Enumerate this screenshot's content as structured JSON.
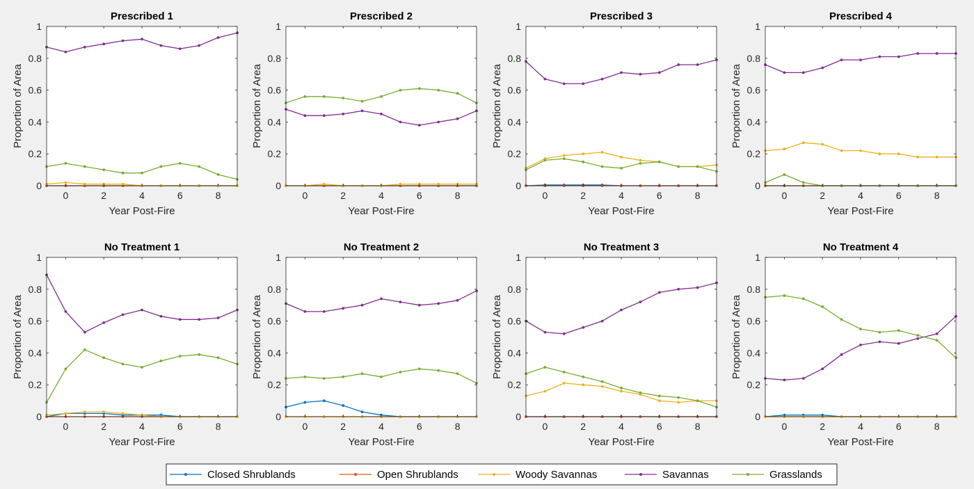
{
  "figure": {
    "background": "#f0f0f0",
    "series_colors": {
      "Closed Shrublands": "#0072bd",
      "Open Shrublands": "#d95319",
      "Woody Savannas": "#edb120",
      "Savannas": "#7e2f8e",
      "Grasslands": "#77ac30"
    }
  },
  "legend": {
    "items": [
      "Closed Shrublands",
      "Open Shrublands",
      "Woody Savannas",
      "Savannas",
      "Grasslands"
    ],
    "placement": "bottom-center"
  },
  "chart_data": [
    {
      "type": "line",
      "title": "Prescribed 1",
      "xlabel": "Year Post-Fire",
      "ylabel": "Proportion of Area",
      "x": [
        -1,
        0,
        1,
        2,
        3,
        4,
        5,
        6,
        7,
        8,
        9
      ],
      "xlim": [
        -1,
        9
      ],
      "ylim": [
        0,
        1
      ],
      "xticks": [
        0,
        2,
        4,
        6,
        8
      ],
      "yticks": [
        0,
        0.2,
        0.4,
        0.6,
        0.8,
        1
      ],
      "grid": false,
      "series": [
        {
          "name": "Closed Shrublands",
          "values": [
            0,
            0,
            0,
            0,
            0,
            0,
            0,
            0,
            0,
            0,
            0
          ]
        },
        {
          "name": "Open Shrublands",
          "values": [
            0,
            0,
            0,
            0,
            0,
            0,
            0,
            0,
            0,
            0,
            0
          ]
        },
        {
          "name": "Woody Savannas",
          "values": [
            0.01,
            0.02,
            0.01,
            0.01,
            0.01,
            0,
            0,
            0,
            0,
            0,
            0
          ]
        },
        {
          "name": "Savannas",
          "values": [
            0.87,
            0.84,
            0.87,
            0.89,
            0.91,
            0.92,
            0.88,
            0.86,
            0.88,
            0.93,
            0.96
          ]
        },
        {
          "name": "Grasslands",
          "values": [
            0.12,
            0.14,
            0.12,
            0.1,
            0.08,
            0.08,
            0.12,
            0.14,
            0.12,
            0.07,
            0.04
          ]
        }
      ]
    },
    {
      "type": "line",
      "title": "Prescribed 2",
      "xlabel": "Year Post-Fire",
      "ylabel": "Proportion of Area",
      "x": [
        -1,
        0,
        1,
        2,
        3,
        4,
        5,
        6,
        7,
        8,
        9
      ],
      "xlim": [
        -1,
        9
      ],
      "ylim": [
        0,
        1
      ],
      "xticks": [
        0,
        2,
        4,
        6,
        8
      ],
      "yticks": [
        0,
        0.2,
        0.4,
        0.6,
        0.8,
        1
      ],
      "grid": false,
      "series": [
        {
          "name": "Closed Shrublands",
          "values": [
            0,
            0,
            0,
            0,
            0,
            0,
            0,
            0,
            0,
            0,
            0
          ]
        },
        {
          "name": "Open Shrublands",
          "values": [
            0,
            0,
            0,
            0,
            0,
            0,
            0,
            0,
            0,
            0,
            0
          ]
        },
        {
          "name": "Woody Savannas",
          "values": [
            0,
            0,
            0.01,
            0,
            0,
            0,
            0.01,
            0.01,
            0.01,
            0.01,
            0.01
          ]
        },
        {
          "name": "Savannas",
          "values": [
            0.48,
            0.44,
            0.44,
            0.45,
            0.47,
            0.45,
            0.4,
            0.38,
            0.4,
            0.42,
            0.47
          ]
        },
        {
          "name": "Grasslands",
          "values": [
            0.52,
            0.56,
            0.56,
            0.55,
            0.53,
            0.56,
            0.6,
            0.61,
            0.6,
            0.58,
            0.52
          ]
        }
      ]
    },
    {
      "type": "line",
      "title": "Prescribed 3",
      "xlabel": "Year Post-Fire",
      "ylabel": "Proportion of Area",
      "x": [
        -1,
        0,
        1,
        2,
        3,
        4,
        5,
        6,
        7,
        8,
        9
      ],
      "xlim": [
        -1,
        9
      ],
      "ylim": [
        0,
        1
      ],
      "xticks": [
        0,
        2,
        4,
        6,
        8
      ],
      "yticks": [
        0,
        0.2,
        0.4,
        0.6,
        0.8,
        1
      ],
      "grid": false,
      "series": [
        {
          "name": "Closed Shrublands",
          "values": [
            0,
            0.005,
            0.005,
            0.005,
            0.005,
            0,
            0,
            0,
            0,
            0,
            0
          ]
        },
        {
          "name": "Open Shrublands",
          "values": [
            0,
            0,
            0,
            0,
            0,
            0,
            0,
            0,
            0,
            0,
            0
          ]
        },
        {
          "name": "Woody Savannas",
          "values": [
            0.11,
            0.17,
            0.19,
            0.2,
            0.21,
            0.18,
            0.16,
            0.15,
            0.12,
            0.12,
            0.13
          ]
        },
        {
          "name": "Savannas",
          "values": [
            0.78,
            0.67,
            0.64,
            0.64,
            0.67,
            0.71,
            0.7,
            0.71,
            0.76,
            0.76,
            0.79
          ]
        },
        {
          "name": "Grasslands",
          "values": [
            0.1,
            0.16,
            0.17,
            0.15,
            0.12,
            0.11,
            0.14,
            0.15,
            0.12,
            0.12,
            0.09
          ]
        }
      ]
    },
    {
      "type": "line",
      "title": "Prescribed 4",
      "xlabel": "Year Post-Fire",
      "ylabel": "Proportion of Area",
      "x": [
        -1,
        0,
        1,
        2,
        3,
        4,
        5,
        6,
        7,
        8,
        9
      ],
      "xlim": [
        -1,
        9
      ],
      "ylim": [
        0,
        1
      ],
      "xticks": [
        0,
        2,
        4,
        6,
        8
      ],
      "yticks": [
        0,
        0.2,
        0.4,
        0.6,
        0.8,
        1
      ],
      "grid": false,
      "series": [
        {
          "name": "Closed Shrublands",
          "values": [
            0,
            0,
            0,
            0,
            0,
            0,
            0,
            0,
            0,
            0,
            0
          ]
        },
        {
          "name": "Open Shrublands",
          "values": [
            0,
            0,
            0,
            0,
            0,
            0,
            0,
            0,
            0,
            0,
            0
          ]
        },
        {
          "name": "Woody Savannas",
          "values": [
            0.22,
            0.23,
            0.27,
            0.26,
            0.22,
            0.22,
            0.2,
            0.2,
            0.18,
            0.18,
            0.18
          ]
        },
        {
          "name": "Savannas",
          "values": [
            0.76,
            0.71,
            0.71,
            0.74,
            0.79,
            0.79,
            0.81,
            0.81,
            0.83,
            0.83,
            0.83
          ]
        },
        {
          "name": "Grasslands",
          "values": [
            0.02,
            0.07,
            0.02,
            0,
            0,
            0,
            0,
            0,
            0,
            0,
            0
          ]
        }
      ]
    },
    {
      "type": "line",
      "title": "No Treatment 1",
      "xlabel": "Year Post-Fire",
      "ylabel": "Proportion of Area",
      "x": [
        -1,
        0,
        1,
        2,
        3,
        4,
        5,
        6,
        7,
        8,
        9
      ],
      "xlim": [
        -1,
        9
      ],
      "ylim": [
        0,
        1
      ],
      "xticks": [
        0,
        2,
        4,
        6,
        8
      ],
      "yticks": [
        0,
        0.2,
        0.4,
        0.6,
        0.8,
        1
      ],
      "grid": false,
      "series": [
        {
          "name": "Closed Shrublands",
          "values": [
            0,
            0.02,
            0.02,
            0.02,
            0.01,
            0.01,
            0.01,
            0,
            0,
            0,
            0
          ]
        },
        {
          "name": "Open Shrublands",
          "values": [
            0,
            0,
            0,
            0,
            0,
            0,
            0,
            0,
            0,
            0,
            0
          ]
        },
        {
          "name": "Woody Savannas",
          "values": [
            0.01,
            0.02,
            0.03,
            0.03,
            0.02,
            0.01,
            0,
            0,
            0,
            0,
            0
          ]
        },
        {
          "name": "Savannas",
          "values": [
            0.89,
            0.66,
            0.53,
            0.59,
            0.64,
            0.67,
            0.63,
            0.61,
            0.61,
            0.62,
            0.67
          ]
        },
        {
          "name": "Grasslands",
          "values": [
            0.09,
            0.3,
            0.42,
            0.37,
            0.33,
            0.31,
            0.35,
            0.38,
            0.39,
            0.37,
            0.33
          ]
        }
      ]
    },
    {
      "type": "line",
      "title": "No Treatment 2",
      "xlabel": "Year Post-Fire",
      "ylabel": "Proportion of Area",
      "x": [
        -1,
        0,
        1,
        2,
        3,
        4,
        5,
        6,
        7,
        8,
        9
      ],
      "xlim": [
        -1,
        9
      ],
      "ylim": [
        0,
        1
      ],
      "xticks": [
        0,
        2,
        4,
        6,
        8
      ],
      "yticks": [
        0,
        0.2,
        0.4,
        0.6,
        0.8,
        1
      ],
      "grid": false,
      "series": [
        {
          "name": "Closed Shrublands",
          "values": [
            0.06,
            0.09,
            0.1,
            0.07,
            0.03,
            0.01,
            0,
            0,
            0,
            0,
            0
          ]
        },
        {
          "name": "Open Shrublands",
          "values": [
            0,
            0,
            0,
            0,
            0,
            0,
            0,
            0,
            0,
            0,
            0
          ]
        },
        {
          "name": "Woody Savannas",
          "values": [
            0,
            0,
            0,
            0,
            0,
            0,
            0,
            0,
            0,
            0,
            0
          ]
        },
        {
          "name": "Savannas",
          "values": [
            0.71,
            0.66,
            0.66,
            0.68,
            0.7,
            0.74,
            0.72,
            0.7,
            0.71,
            0.73,
            0.79
          ]
        },
        {
          "name": "Grasslands",
          "values": [
            0.24,
            0.25,
            0.24,
            0.25,
            0.27,
            0.25,
            0.28,
            0.3,
            0.29,
            0.27,
            0.21
          ]
        }
      ]
    },
    {
      "type": "line",
      "title": "No Treatment 3",
      "xlabel": "Year Post-Fire",
      "ylabel": "Proportion of Area",
      "x": [
        -1,
        0,
        1,
        2,
        3,
        4,
        5,
        6,
        7,
        8,
        9
      ],
      "xlim": [
        -1,
        9
      ],
      "ylim": [
        0,
        1
      ],
      "xticks": [
        0,
        2,
        4,
        6,
        8
      ],
      "yticks": [
        0,
        0.2,
        0.4,
        0.6,
        0.8,
        1
      ],
      "grid": false,
      "series": [
        {
          "name": "Closed Shrublands",
          "values": [
            0,
            0,
            0,
            0,
            0,
            0,
            0,
            0,
            0,
            0,
            0
          ]
        },
        {
          "name": "Open Shrublands",
          "values": [
            0,
            0,
            0,
            0,
            0,
            0,
            0,
            0,
            0,
            0,
            0
          ]
        },
        {
          "name": "Woody Savannas",
          "values": [
            0.13,
            0.16,
            0.21,
            0.2,
            0.19,
            0.16,
            0.14,
            0.1,
            0.09,
            0.1,
            0.1
          ]
        },
        {
          "name": "Savannas",
          "values": [
            0.6,
            0.53,
            0.52,
            0.56,
            0.6,
            0.67,
            0.72,
            0.78,
            0.8,
            0.81,
            0.84
          ]
        },
        {
          "name": "Grasslands",
          "values": [
            0.27,
            0.31,
            0.28,
            0.25,
            0.22,
            0.18,
            0.15,
            0.13,
            0.12,
            0.1,
            0.06
          ]
        }
      ]
    },
    {
      "type": "line",
      "title": "No Treatment 4",
      "xlabel": "Year Post-Fire",
      "ylabel": "Proportion of Area",
      "x": [
        -1,
        0,
        1,
        2,
        3,
        4,
        5,
        6,
        7,
        8,
        9
      ],
      "xlim": [
        -1,
        9
      ],
      "ylim": [
        0,
        1
      ],
      "xticks": [
        0,
        2,
        4,
        6,
        8
      ],
      "yticks": [
        0,
        0.2,
        0.4,
        0.6,
        0.8,
        1
      ],
      "grid": false,
      "series": [
        {
          "name": "Closed Shrublands",
          "values": [
            0,
            0.01,
            0.01,
            0.01,
            0,
            0,
            0,
            0,
            0,
            0,
            0
          ]
        },
        {
          "name": "Open Shrublands",
          "values": [
            0,
            0,
            0,
            0,
            0,
            0,
            0,
            0,
            0,
            0,
            0
          ]
        },
        {
          "name": "Woody Savannas",
          "values": [
            0,
            0,
            0,
            0,
            0,
            0,
            0,
            0,
            0,
            0,
            0
          ]
        },
        {
          "name": "Savannas",
          "values": [
            0.24,
            0.23,
            0.24,
            0.3,
            0.39,
            0.45,
            0.47,
            0.46,
            0.49,
            0.52,
            0.63
          ]
        },
        {
          "name": "Grasslands",
          "values": [
            0.75,
            0.76,
            0.74,
            0.69,
            0.61,
            0.55,
            0.53,
            0.54,
            0.51,
            0.48,
            0.37
          ]
        }
      ]
    }
  ]
}
